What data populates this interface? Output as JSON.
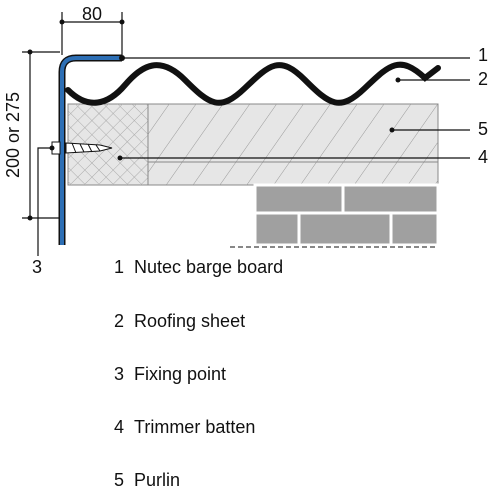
{
  "dimensions": {
    "width": "80",
    "height": "200 or 275"
  },
  "callouts": [
    "1",
    "2",
    "3",
    "4",
    "5"
  ],
  "legend": [
    {
      "number": "1",
      "label": "Nutec barge board"
    },
    {
      "number": "2",
      "label": "Roofing sheet"
    },
    {
      "number": "3",
      "label": "Fixing point"
    },
    {
      "number": "4",
      "label": "Trimmer batten"
    },
    {
      "number": "5",
      "label": "Purlin"
    }
  ]
}
